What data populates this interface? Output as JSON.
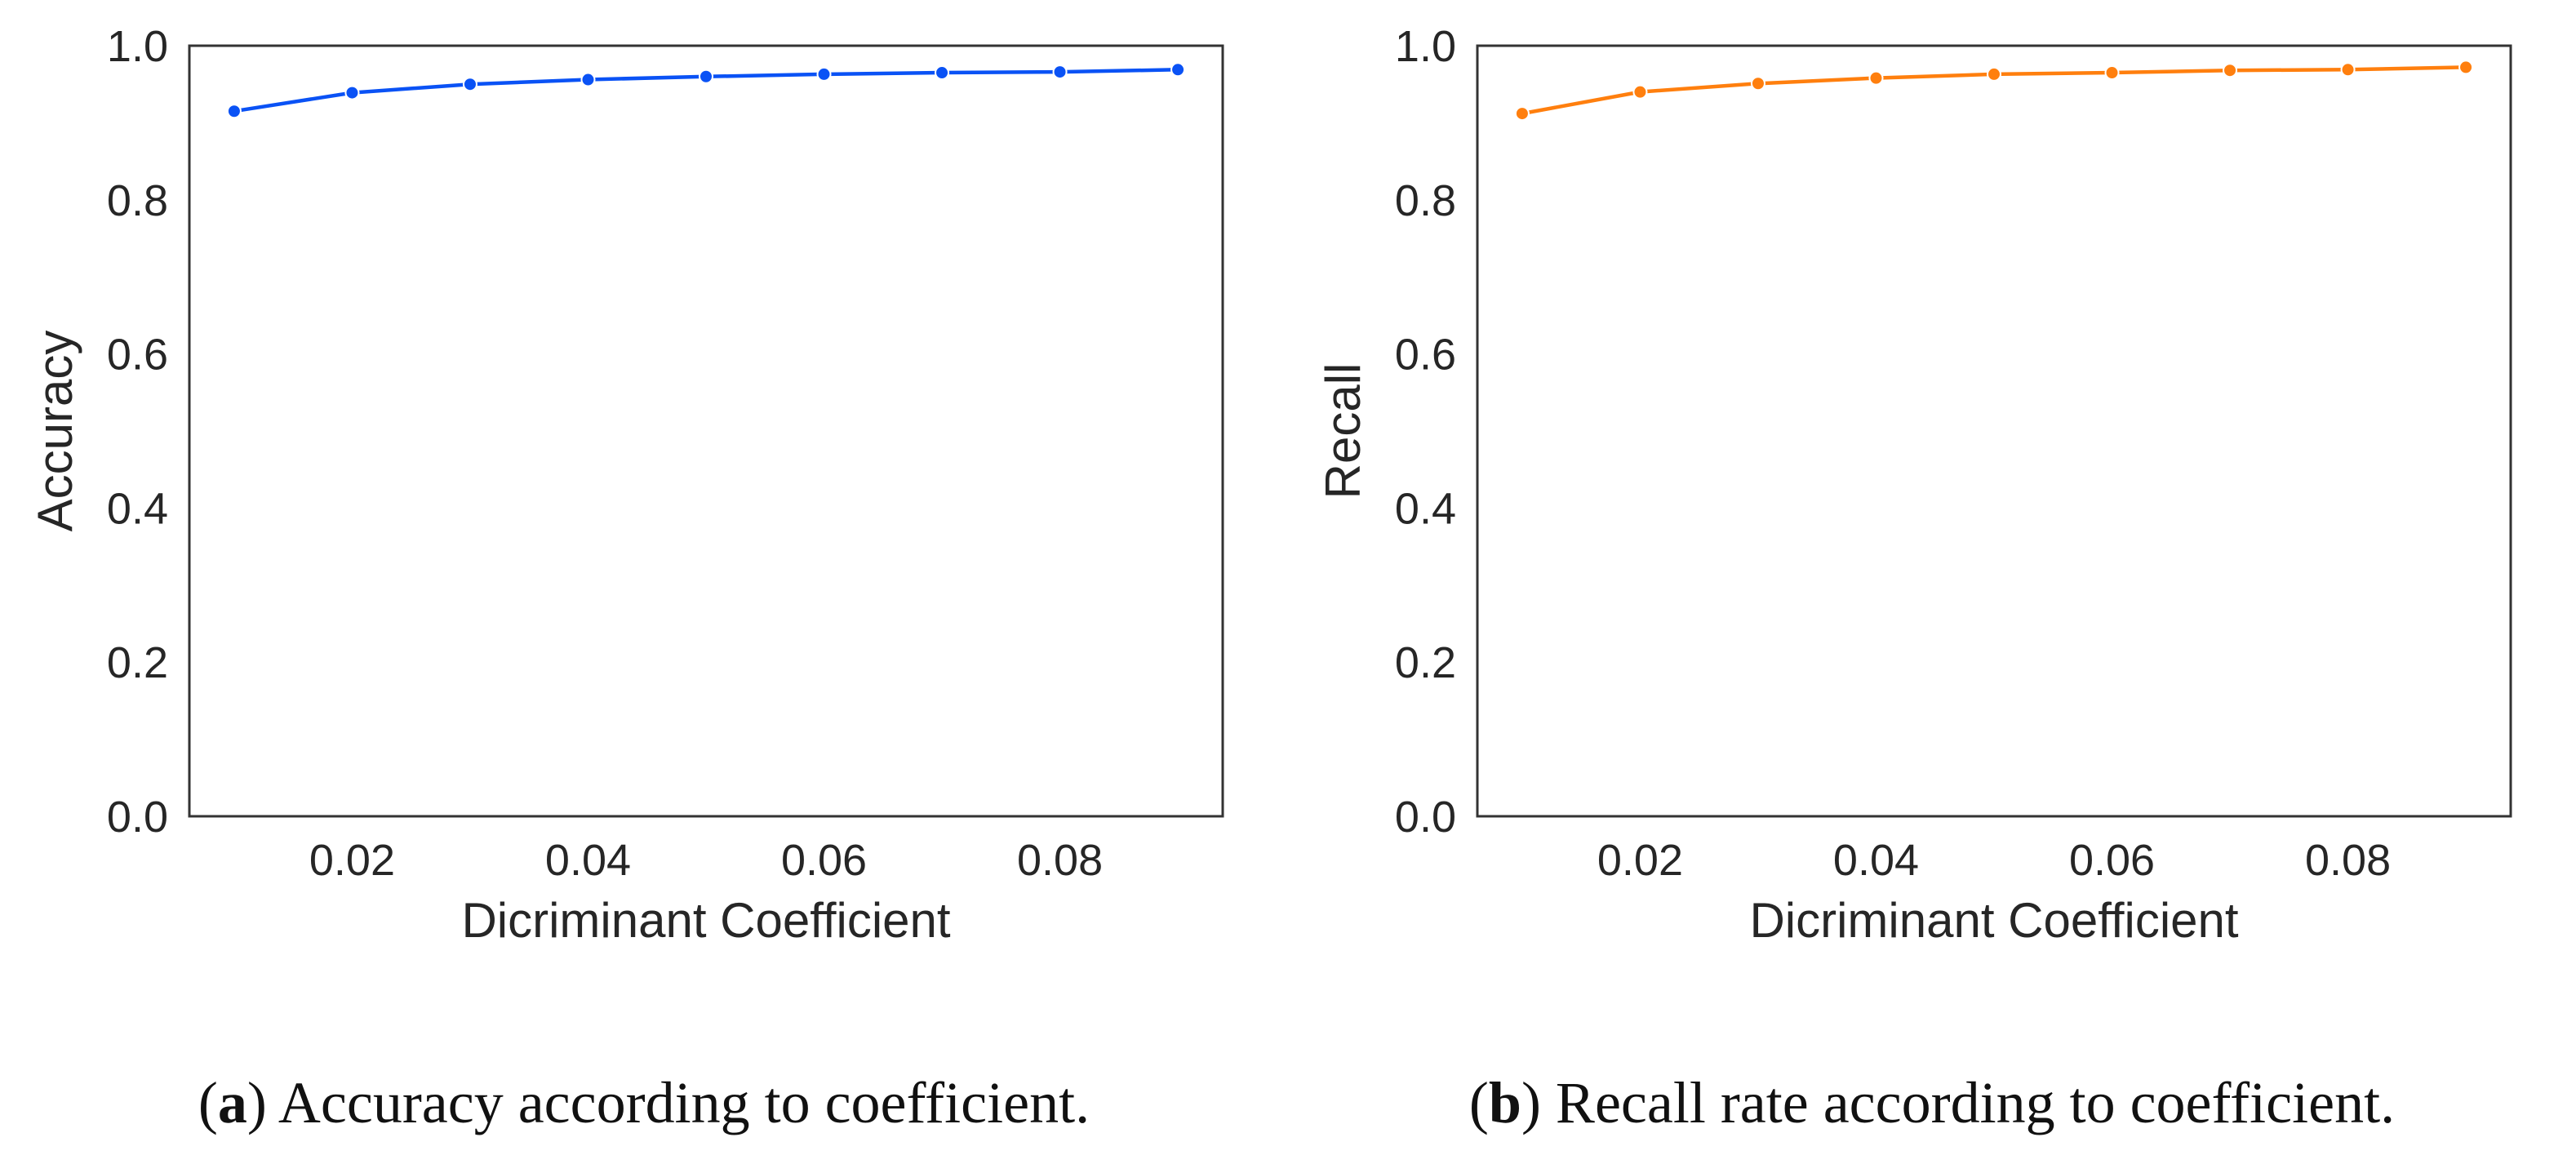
{
  "chart_data": [
    {
      "type": "line",
      "panel": "a",
      "x": [
        0.01,
        0.02,
        0.03,
        0.04,
        0.05,
        0.06,
        0.07,
        0.08,
        0.09
      ],
      "series": [
        {
          "name": "Accuracy",
          "values": [
            0.915,
            0.939,
            0.95,
            0.956,
            0.96,
            0.963,
            0.965,
            0.966,
            0.969
          ]
        }
      ],
      "xlabel": "Dicriminant Coefficient",
      "ylabel": "Accuracy",
      "xlim": [
        0.0062,
        0.0938
      ],
      "ylim": [
        0.0,
        1.0
      ],
      "xticks": [
        0.02,
        0.04,
        0.06,
        0.08
      ],
      "xtick_labels": [
        "0.02",
        "0.04",
        "0.06",
        "0.08"
      ],
      "yticks": [
        0.0,
        0.2,
        0.4,
        0.6,
        0.8,
        1.0
      ],
      "ytick_labels": [
        "0.0",
        "0.2",
        "0.4",
        "0.6",
        "0.8",
        "1.0"
      ],
      "color": "#0a52f5",
      "grid": false
    },
    {
      "type": "line",
      "panel": "b",
      "x": [
        0.01,
        0.02,
        0.03,
        0.04,
        0.05,
        0.06,
        0.07,
        0.08,
        0.09
      ],
      "series": [
        {
          "name": "Recall",
          "values": [
            0.912,
            0.94,
            0.951,
            0.958,
            0.963,
            0.965,
            0.968,
            0.969,
            0.972
          ]
        }
      ],
      "xlabel": "Dicriminant Coefficient",
      "ylabel": "Recall",
      "xlim": [
        0.0062,
        0.0938
      ],
      "ylim": [
        0.0,
        1.0
      ],
      "xticks": [
        0.02,
        0.04,
        0.06,
        0.08
      ],
      "xtick_labels": [
        "0.02",
        "0.04",
        "0.06",
        "0.08"
      ],
      "yticks": [
        0.0,
        0.2,
        0.4,
        0.6,
        0.8,
        1.0
      ],
      "ytick_labels": [
        "0.0",
        "0.2",
        "0.4",
        "0.6",
        "0.8",
        "1.0"
      ],
      "color": "#ff7f0e",
      "grid": false
    }
  ],
  "captions": {
    "a": {
      "letter": "a",
      "text": " Accuracy according to coefficient."
    },
    "b": {
      "letter": "b",
      "text": " Recall rate according to coefficient."
    }
  }
}
